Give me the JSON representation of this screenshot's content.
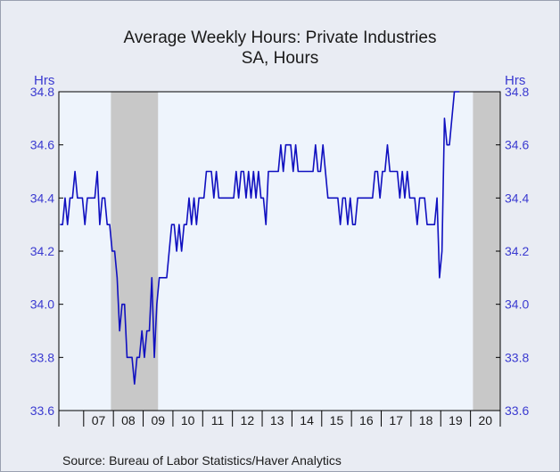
{
  "chart_data": {
    "type": "line",
    "title": "Average Weekly Hours: Private Industries",
    "subtitle": "SA, Hours",
    "ylabel_left": "Hrs",
    "ylabel_right": "Hrs",
    "source": "Source:  Bureau of Labor Statistics/Haver Analytics",
    "ylim": [
      33.6,
      34.8
    ],
    "yticks": [
      "34.8",
      "34.6",
      "34.4",
      "34.2",
      "34.0",
      "33.8",
      "33.6"
    ],
    "xticks": [
      "07",
      "08",
      "09",
      "10",
      "11",
      "12",
      "13",
      "14",
      "15",
      "16",
      "17",
      "18",
      "19",
      "20"
    ],
    "x_start": "2006-03",
    "x_end": "2020-12",
    "recessions": [
      {
        "start": "2007-12",
        "end": "2009-06"
      },
      {
        "start": "2020-02",
        "end": "2020-12"
      }
    ],
    "colors": {
      "line": "#1010c0",
      "plot_bg": "#eef4fc",
      "recession": "#c8c8c8",
      "axis_text": "#3a3ad0"
    },
    "series": [
      {
        "values": [
          34.3,
          34.3,
          34.4,
          34.3,
          34.4,
          34.4,
          34.5,
          34.4,
          34.4,
          34.4,
          34.3,
          34.4,
          34.4,
          34.4,
          34.4,
          34.5,
          34.3,
          34.4,
          34.4,
          34.3,
          34.3,
          34.2,
          34.2,
          34.1,
          33.9,
          34.0,
          34.0,
          33.8,
          33.8,
          33.8,
          33.7,
          33.8,
          33.8,
          33.9,
          33.8,
          33.9,
          33.9,
          34.1,
          33.8,
          34.0,
          34.1,
          34.1,
          34.1,
          34.1,
          34.2,
          34.3,
          34.3,
          34.2,
          34.3,
          34.2,
          34.3,
          34.3,
          34.4,
          34.3,
          34.4,
          34.3,
          34.4,
          34.4,
          34.4,
          34.5,
          34.5,
          34.5,
          34.4,
          34.5,
          34.4,
          34.4,
          34.4,
          34.4,
          34.4,
          34.4,
          34.4,
          34.5,
          34.4,
          34.5,
          34.5,
          34.4,
          34.5,
          34.4,
          34.5,
          34.4,
          34.5,
          34.4,
          34.4,
          34.3,
          34.5,
          34.5,
          34.5,
          34.5,
          34.5,
          34.6,
          34.5,
          34.6,
          34.6,
          34.6,
          34.5,
          34.6,
          34.5,
          34.5,
          34.5,
          34.5,
          34.5,
          34.5,
          34.5,
          34.6,
          34.5,
          34.5,
          34.6,
          34.5,
          34.4,
          34.4,
          34.4,
          34.4,
          34.4,
          34.3,
          34.4,
          34.4,
          34.3,
          34.4,
          34.3,
          34.3,
          34.4,
          34.4,
          34.4,
          34.4,
          34.4,
          34.4,
          34.4,
          34.5,
          34.5,
          34.4,
          34.5,
          34.5,
          34.6,
          34.5,
          34.5,
          34.5,
          34.5,
          34.4,
          34.5,
          34.4,
          34.5,
          34.4,
          34.4,
          34.4,
          34.3,
          34.4,
          34.4,
          34.4,
          34.3,
          34.3,
          34.3,
          34.3,
          34.4,
          34.1,
          34.2,
          34.7,
          34.6,
          34.6,
          34.7,
          34.8,
          34.8,
          34.8
        ]
      }
    ]
  }
}
